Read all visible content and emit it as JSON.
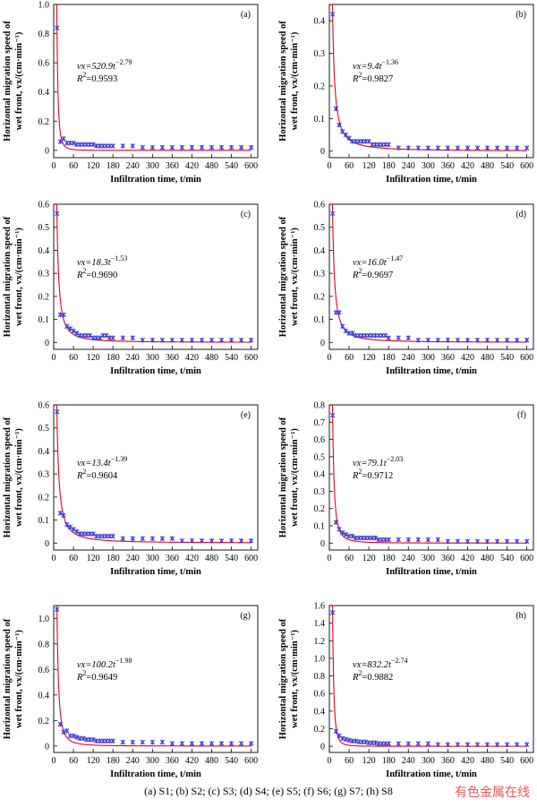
{
  "caption": "(a) S1; (b) S2; (c) S3; (d) S4; (e) S5; (f) S6; (g) S7; (h) S8",
  "watermark": "有色金属在线",
  "colors": {
    "fit": "#e8001a",
    "points": "#3b3bd6"
  },
  "chart_data": [
    {
      "id": "a",
      "type": "scatter",
      "label": "(a)",
      "xlabel": "Infiltration time, t/min",
      "ylabel": [
        "Horizontal migration speed of",
        "wet front, vx/(cm·min⁻¹)"
      ],
      "xlim": [
        0,
        620
      ],
      "ylim": [
        -0.05,
        1.0
      ],
      "xticks": [
        0,
        60,
        120,
        180,
        240,
        300,
        360,
        420,
        480,
        540,
        600
      ],
      "yticks": [
        0,
        0.2,
        0.4,
        0.6,
        0.8,
        1.0
      ],
      "ytick_labels": [
        "0",
        "0.2",
        "0.4",
        "0.6",
        "0.8",
        "1.0"
      ],
      "equation": {
        "lhs": "vx=520.9t",
        "exp": "−2.79",
        "r2": "=0.9593"
      },
      "fit": {
        "a": 520.9,
        "b": -2.79
      },
      "points": {
        "x": [
          10,
          20,
          30,
          40,
          50,
          60,
          70,
          80,
          90,
          100,
          110,
          120,
          130,
          140,
          150,
          160,
          170,
          180,
          210,
          240,
          270,
          300,
          330,
          360,
          390,
          420,
          450,
          480,
          510,
          540,
          570,
          600
        ],
        "y": [
          0.84,
          0.06,
          0.08,
          0.05,
          0.05,
          0.05,
          0.04,
          0.04,
          0.04,
          0.04,
          0.04,
          0.04,
          0.03,
          0.03,
          0.03,
          0.03,
          0.03,
          0.03,
          0.03,
          0.03,
          0.02,
          0.02,
          0.02,
          0.02,
          0.02,
          0.02,
          0.02,
          0.02,
          0.02,
          0.02,
          0.02,
          0.02
        ]
      }
    },
    {
      "id": "b",
      "type": "scatter",
      "label": "(b)",
      "xlabel": "Infiltration time, t/min",
      "ylabel": [
        "Horizontal migration speed of",
        "wet front, vx/(cm·min⁻¹)"
      ],
      "xlim": [
        0,
        620
      ],
      "ylim": [
        -0.02,
        0.45
      ],
      "xticks": [
        0,
        60,
        120,
        180,
        240,
        300,
        360,
        420,
        480,
        540,
        600
      ],
      "yticks": [
        0,
        0.1,
        0.2,
        0.3,
        0.4
      ],
      "ytick_labels": [
        "0",
        "0.1",
        "0.2",
        "0.3",
        "0.4"
      ],
      "equation": {
        "lhs": "vx=9.4t",
        "exp": "−1.36",
        "r2": "=0.9827"
      },
      "fit": {
        "a": 9.4,
        "b": -1.36
      },
      "points": {
        "x": [
          10,
          20,
          30,
          40,
          50,
          60,
          70,
          80,
          90,
          100,
          110,
          120,
          130,
          140,
          150,
          160,
          170,
          180,
          210,
          240,
          270,
          300,
          330,
          360,
          390,
          420,
          450,
          480,
          510,
          540,
          570,
          600
        ],
        "y": [
          0.42,
          0.13,
          0.08,
          0.06,
          0.05,
          0.04,
          0.03,
          0.03,
          0.03,
          0.03,
          0.03,
          0.03,
          0.02,
          0.02,
          0.02,
          0.02,
          0.02,
          0.02,
          0.01,
          0.01,
          0.01,
          0.01,
          0.01,
          0.01,
          0.01,
          0.01,
          0.01,
          0.01,
          0.01,
          0.01,
          0.01,
          0.01
        ]
      }
    },
    {
      "id": "c",
      "type": "scatter",
      "label": "(c)",
      "xlabel": "Infiltration time, t/min",
      "ylabel": [
        "Horizontal migration speed of",
        "wet front, vx/(cm·min⁻¹)"
      ],
      "xlim": [
        0,
        620
      ],
      "ylim": [
        -0.03,
        0.6
      ],
      "xticks": [
        0,
        60,
        120,
        180,
        240,
        300,
        360,
        420,
        480,
        540,
        600
      ],
      "yticks": [
        0,
        0.1,
        0.2,
        0.3,
        0.4,
        0.5,
        0.6
      ],
      "ytick_labels": [
        "0",
        "0.1",
        "0.2",
        "0.3",
        "0.4",
        "0.5",
        "0.6"
      ],
      "equation": {
        "lhs": "vx=18.3t",
        "exp": "−1.53",
        "r2": "=0.9690"
      },
      "fit": {
        "a": 18.3,
        "b": -1.53
      },
      "points": {
        "x": [
          10,
          20,
          30,
          40,
          50,
          60,
          70,
          80,
          90,
          100,
          110,
          120,
          130,
          140,
          150,
          160,
          170,
          180,
          210,
          240,
          270,
          300,
          330,
          360,
          390,
          420,
          450,
          480,
          510,
          540,
          570,
          600
        ],
        "y": [
          0.56,
          0.12,
          0.12,
          0.07,
          0.06,
          0.05,
          0.04,
          0.03,
          0.03,
          0.03,
          0.03,
          0.02,
          0.02,
          0.02,
          0.03,
          0.03,
          0.02,
          0.02,
          0.02,
          0.02,
          0.01,
          0.01,
          0.01,
          0.01,
          0.01,
          0.01,
          0.01,
          0.01,
          0.01,
          0.01,
          0.01,
          0.01
        ]
      }
    },
    {
      "id": "d",
      "type": "scatter",
      "label": "(d)",
      "xlabel": "Infiltration time, t/min",
      "ylabel": [
        "Horizontal migration speed of",
        "wet front, vx/(cm·min⁻¹)"
      ],
      "xlim": [
        0,
        620
      ],
      "ylim": [
        -0.03,
        0.6
      ],
      "xticks": [
        0,
        60,
        120,
        180,
        240,
        300,
        360,
        420,
        480,
        540,
        600
      ],
      "yticks": [
        0,
        0.1,
        0.2,
        0.3,
        0.4,
        0.5,
        0.6
      ],
      "ytick_labels": [
        "0",
        "0.1",
        "0.2",
        "0.3",
        "0.4",
        "0.5",
        "0.6"
      ],
      "equation": {
        "lhs": "vx=16.0t",
        "exp": "−1.47",
        "r2": "=0.9697"
      },
      "fit": {
        "a": 16.0,
        "b": -1.47
      },
      "points": {
        "x": [
          10,
          20,
          30,
          40,
          50,
          60,
          70,
          80,
          90,
          100,
          110,
          120,
          130,
          140,
          150,
          160,
          170,
          180,
          210,
          240,
          270,
          300,
          330,
          360,
          390,
          420,
          450,
          480,
          510,
          540,
          570,
          600
        ],
        "y": [
          0.56,
          0.13,
          0.13,
          0.07,
          0.05,
          0.04,
          0.04,
          0.03,
          0.03,
          0.03,
          0.03,
          0.03,
          0.03,
          0.03,
          0.03,
          0.03,
          0.03,
          0.02,
          0.02,
          0.02,
          0.01,
          0.01,
          0.01,
          0.01,
          0.01,
          0.01,
          0.01,
          0.01,
          0.01,
          0.01,
          0.01,
          0.01
        ]
      }
    },
    {
      "id": "e",
      "type": "scatter",
      "label": "(e)",
      "xlabel": "Infiltration time, t/min",
      "ylabel": [
        "Horizontal migration speed of",
        "wet front, vx/(cm·min⁻¹)"
      ],
      "xlim": [
        0,
        620
      ],
      "ylim": [
        -0.03,
        0.6
      ],
      "xticks": [
        0,
        60,
        120,
        180,
        240,
        300,
        360,
        420,
        480,
        540,
        600
      ],
      "yticks": [
        0,
        0.1,
        0.2,
        0.3,
        0.4,
        0.5,
        0.6
      ],
      "ytick_labels": [
        "0",
        "0.1",
        "0.2",
        "0.3",
        "0.4",
        "0.5",
        "0.6"
      ],
      "equation": {
        "lhs": "vx=13.4t",
        "exp": "−1.39",
        "r2": "=0.9604"
      },
      "fit": {
        "a": 13.4,
        "b": -1.39
      },
      "points": {
        "x": [
          10,
          20,
          30,
          40,
          50,
          60,
          70,
          80,
          90,
          100,
          110,
          120,
          130,
          140,
          150,
          160,
          170,
          180,
          210,
          240,
          270,
          300,
          330,
          360,
          390,
          420,
          450,
          480,
          510,
          540,
          570,
          600
        ],
        "y": [
          0.57,
          0.13,
          0.12,
          0.08,
          0.07,
          0.06,
          0.05,
          0.04,
          0.04,
          0.04,
          0.04,
          0.04,
          0.03,
          0.03,
          0.03,
          0.03,
          0.03,
          0.03,
          0.02,
          0.02,
          0.02,
          0.02,
          0.02,
          0.02,
          0.01,
          0.01,
          0.01,
          0.01,
          0.01,
          0.01,
          0.01,
          0.01
        ]
      }
    },
    {
      "id": "f",
      "type": "scatter",
      "label": "(f)",
      "xlabel": "Infiltration time, t/min",
      "ylabel": [
        "Horizontal migration speed of",
        "wet front, vx/(cm·min⁻¹)"
      ],
      "xlim": [
        0,
        620
      ],
      "ylim": [
        -0.04,
        0.8
      ],
      "xticks": [
        0,
        60,
        120,
        180,
        240,
        300,
        360,
        420,
        480,
        540,
        600
      ],
      "yticks": [
        0,
        0.1,
        0.2,
        0.3,
        0.4,
        0.5,
        0.6,
        0.7,
        0.8
      ],
      "ytick_labels": [
        "0",
        "0.1",
        "0.2",
        "0.3",
        "0.4",
        "0.5",
        "0.6",
        "0.7",
        "0.8"
      ],
      "equation": {
        "lhs": "vx=79.1t",
        "exp": "−2.03",
        "r2": "=0.9712"
      },
      "fit": {
        "a": 79.1,
        "b": -2.03
      },
      "points": {
        "x": [
          10,
          20,
          30,
          40,
          50,
          60,
          70,
          80,
          90,
          100,
          110,
          120,
          130,
          140,
          150,
          160,
          170,
          180,
          210,
          240,
          270,
          300,
          330,
          360,
          390,
          420,
          450,
          480,
          510,
          540,
          570,
          600
        ],
        "y": [
          0.74,
          0.12,
          0.08,
          0.06,
          0.05,
          0.04,
          0.04,
          0.03,
          0.03,
          0.03,
          0.03,
          0.03,
          0.03,
          0.03,
          0.02,
          0.02,
          0.02,
          0.02,
          0.02,
          0.02,
          0.02,
          0.02,
          0.02,
          0.01,
          0.01,
          0.01,
          0.01,
          0.01,
          0.01,
          0.01,
          0.01,
          0.01
        ]
      }
    },
    {
      "id": "g",
      "type": "scatter",
      "label": "(g)",
      "xlabel": "Infiltration time, t/min",
      "ylabel": [
        "Horizontal migration speed of",
        "wet front, vx/(cm·min⁻¹)"
      ],
      "xlim": [
        0,
        620
      ],
      "ylim": [
        -0.05,
        1.1
      ],
      "xticks": [
        0,
        60,
        120,
        180,
        240,
        300,
        360,
        420,
        480,
        540,
        600
      ],
      "yticks": [
        0,
        0.2,
        0.4,
        0.6,
        0.8,
        1.0
      ],
      "ytick_labels": [
        "0",
        "0.2",
        "0.4",
        "0.6",
        "0.8",
        "1.0"
      ],
      "equation": {
        "lhs": "vx=100.2t",
        "exp": "−1.98",
        "r2": "=0.9649"
      },
      "fit": {
        "a": 100.2,
        "b": -1.98
      },
      "points": {
        "x": [
          10,
          20,
          30,
          40,
          50,
          60,
          70,
          80,
          90,
          100,
          110,
          120,
          130,
          140,
          150,
          160,
          170,
          180,
          210,
          240,
          270,
          300,
          330,
          360,
          390,
          420,
          450,
          480,
          510,
          540,
          570,
          600
        ],
        "y": [
          1.07,
          0.17,
          0.11,
          0.12,
          0.08,
          0.08,
          0.07,
          0.06,
          0.06,
          0.05,
          0.05,
          0.05,
          0.04,
          0.04,
          0.04,
          0.04,
          0.04,
          0.04,
          0.03,
          0.03,
          0.03,
          0.03,
          0.03,
          0.02,
          0.02,
          0.02,
          0.02,
          0.02,
          0.02,
          0.02,
          0.02,
          0.02
        ]
      }
    },
    {
      "id": "h",
      "type": "scatter",
      "label": "(h)",
      "xlabel": "Infiltration time, t/min",
      "ylabel": [
        "Horizontal migration speed of",
        "wet front, vx/(cm·min⁻¹)"
      ],
      "xlim": [
        0,
        620
      ],
      "ylim": [
        -0.07,
        1.6
      ],
      "xticks": [
        0,
        60,
        120,
        180,
        240,
        300,
        360,
        420,
        480,
        540,
        600
      ],
      "yticks": [
        0,
        0.2,
        0.4,
        0.6,
        0.8,
        1.0,
        1.2,
        1.4,
        1.6
      ],
      "ytick_labels": [
        "0",
        "0.2",
        "0.4",
        "0.6",
        "0.8",
        "1.0",
        "1.2",
        "1.4",
        "1.6"
      ],
      "equation": {
        "lhs": "vx=832.2t",
        "exp": "−2.74",
        "r2": "=0.9882"
      },
      "fit": {
        "a": 832.2,
        "b": -2.74
      },
      "points": {
        "x": [
          10,
          20,
          30,
          40,
          50,
          60,
          70,
          80,
          90,
          100,
          110,
          120,
          130,
          140,
          150,
          160,
          170,
          180,
          210,
          240,
          270,
          300,
          330,
          360,
          390,
          420,
          450,
          480,
          510,
          540,
          570,
          600
        ],
        "y": [
          1.52,
          0.17,
          0.12,
          0.09,
          0.08,
          0.07,
          0.06,
          0.06,
          0.05,
          0.05,
          0.05,
          0.04,
          0.04,
          0.04,
          0.03,
          0.03,
          0.03,
          0.03,
          0.03,
          0.03,
          0.03,
          0.03,
          0.02,
          0.02,
          0.02,
          0.02,
          0.02,
          0.02,
          0.02,
          0.02,
          0.02,
          0.02
        ]
      }
    }
  ]
}
